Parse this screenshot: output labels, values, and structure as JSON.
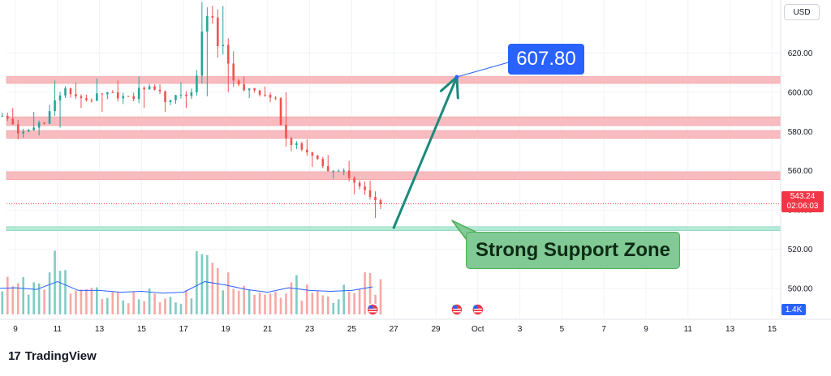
{
  "header": {
    "currency": "USD"
  },
  "price_tag": {
    "price": "543.24",
    "countdown": "02:06:03"
  },
  "volume_tag": {
    "value": "1.4K"
  },
  "annotations": {
    "target_label": "607.80",
    "support_label": "Strong Support Zone"
  },
  "brand": {
    "logo": "17",
    "name": "TradingView"
  },
  "colors": {
    "up": "#26a69a",
    "down": "#ef5350",
    "resistance_zone": "#f8bbbf",
    "support_zone": "#b2ead3",
    "arrow": "#1a8a7c",
    "target": "#2962ff",
    "callout": "#81c995"
  },
  "chart_data": {
    "type": "candlestick",
    "x_tick_labels": [
      "9",
      "11",
      "13",
      "15",
      "17",
      "19",
      "21",
      "23",
      "25",
      "27",
      "29",
      "Oct",
      "3",
      "5",
      "7",
      "9",
      "11",
      "13",
      "15"
    ],
    "y_tick_labels": [
      "500.00",
      "520.00",
      "540.00",
      "560.00",
      "580.00",
      "600.00",
      "620.00"
    ],
    "ylim": [
      486,
      647
    ],
    "volume_ylim": [
      0,
      3.4
    ],
    "grid": true,
    "last_price": 543.24,
    "resistance_zones": [
      [
        604.5,
        608.0
      ],
      [
        583.0,
        587.5
      ],
      [
        576.5,
        580.5
      ],
      [
        555.5,
        559.5
      ]
    ],
    "support_zone": [
      529.5,
      531.5
    ],
    "projection": {
      "from_date": "Sep 27",
      "from_price": 531,
      "to_date": "Sep 30",
      "to_price": 607.8
    },
    "event_icons": [
      "Sep 26",
      "Sep 30",
      "Oct 1"
    ],
    "days": [
      {
        "date": "Sep 8",
        "o": 594,
        "h": 598,
        "l": 585,
        "c": 588,
        "v": 1.2
      },
      {
        "date": "Sep 9",
        "o": 588,
        "h": 592,
        "l": 576,
        "c": 580,
        "v": 1.3
      },
      {
        "date": "Sep 10",
        "o": 580,
        "h": 590,
        "l": 578,
        "c": 584,
        "v": 1.1
      },
      {
        "date": "Sep 11",
        "o": 584,
        "h": 606,
        "l": 582,
        "c": 602,
        "v": 2.2
      },
      {
        "date": "Sep 12",
        "o": 602,
        "h": 605,
        "l": 592,
        "c": 596,
        "v": 1.0
      },
      {
        "date": "Sep 13",
        "o": 596,
        "h": 607,
        "l": 590,
        "c": 600,
        "v": 1.0
      },
      {
        "date": "Sep 14",
        "o": 600,
        "h": 606,
        "l": 594,
        "c": 598,
        "v": 0.8
      },
      {
        "date": "Sep 15",
        "o": 598,
        "h": 608,
        "l": 592,
        "c": 603,
        "v": 0.9
      },
      {
        "date": "Sep 16",
        "o": 603,
        "h": 604,
        "l": 590,
        "c": 596,
        "v": 0.7
      },
      {
        "date": "Sep 17",
        "o": 596,
        "h": 605,
        "l": 592,
        "c": 600,
        "v": 0.8
      },
      {
        "date": "Sep 18",
        "o": 600,
        "h": 646,
        "l": 598,
        "c": 638,
        "v": 3.2
      },
      {
        "date": "Sep 19",
        "o": 638,
        "h": 644,
        "l": 600,
        "c": 606,
        "v": 1.6
      },
      {
        "date": "Sep 20",
        "o": 606,
        "h": 608,
        "l": 597,
        "c": 601,
        "v": 1.1
      },
      {
        "date": "Sep 21",
        "o": 601,
        "h": 603,
        "l": 595,
        "c": 597,
        "v": 0.8
      },
      {
        "date": "Sep 22",
        "o": 597,
        "h": 600,
        "l": 570,
        "c": 574,
        "v": 1.3
      },
      {
        "date": "Sep 23",
        "o": 574,
        "h": 576,
        "l": 562,
        "c": 566,
        "v": 1.0
      },
      {
        "date": "Sep 24",
        "o": 566,
        "h": 568,
        "l": 556,
        "c": 560,
        "v": 0.9
      },
      {
        "date": "Sep 25",
        "o": 560,
        "h": 565,
        "l": 548,
        "c": 552,
        "v": 1.0
      },
      {
        "date": "Sep 26",
        "o": 552,
        "h": 555,
        "l": 536,
        "c": 543,
        "v": 1.4
      }
    ]
  }
}
